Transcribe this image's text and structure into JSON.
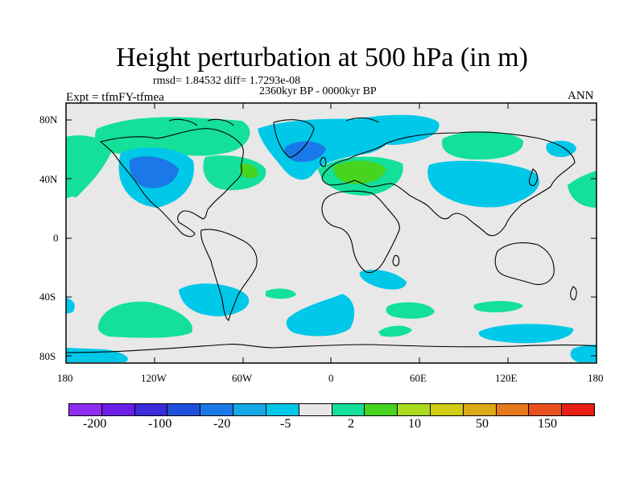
{
  "header": {
    "title": "Height perturbation at 500 hPa (in m)",
    "stats": "rmsd= 1.84532 diff= 1.7293e-08",
    "period": "2360kyr BP - 0000kyr BP",
    "experiment": "Expt = tfmFY-tfmea",
    "season": "ANN"
  },
  "axes": {
    "y_ticks": [
      "80N",
      "40N",
      "0",
      "40S",
      "80S"
    ],
    "x_ticks": [
      "180",
      "120W",
      "60W",
      "0",
      "60E",
      "120E",
      "180"
    ]
  },
  "colorbar": {
    "colors": [
      "#8f2ef0",
      "#6a1ee6",
      "#3c2adb",
      "#1e50dc",
      "#1a78e8",
      "#14a8e6",
      "#00c8e8",
      "#e8e8e8",
      "#14e09a",
      "#46d41e",
      "#aadc1e",
      "#d2cc14",
      "#dcaa14",
      "#e6781e",
      "#e8501e",
      "#e61e14"
    ],
    "labels": [
      "-200",
      "-100",
      "-20",
      "-5",
      "2",
      "10",
      "50",
      "150"
    ]
  },
  "map": {
    "land_color": "#e8e8e8",
    "regions": [
      {
        "name": "green-arctic-north-america",
        "color": "#14e09a"
      },
      {
        "name": "green-alaska-pacific",
        "color": "#14e09a"
      },
      {
        "name": "green-atlantic-northwest",
        "color": "#14e09a"
      },
      {
        "name": "green-mid-atlantic",
        "color": "#46d41e"
      },
      {
        "name": "cyan-north-pacific-low",
        "color": "#00c8e8"
      },
      {
        "name": "blue-north-pacific-core",
        "color": "#1a78e8"
      },
      {
        "name": "cyan-north-atlantic",
        "color": "#00c8e8"
      },
      {
        "name": "blue-north-atlantic-core",
        "color": "#1a78e8"
      },
      {
        "name": "green-europe",
        "color": "#14e09a"
      },
      {
        "name": "darkgreen-europe-core",
        "color": "#46d41e"
      },
      {
        "name": "cyan-siberia",
        "color": "#00c8e8"
      },
      {
        "name": "green-central-asia",
        "color": "#14e09a"
      },
      {
        "name": "cyan-east-asia",
        "color": "#00c8e8"
      },
      {
        "name": "cyan-northwest-pacific",
        "color": "#00c8e8"
      },
      {
        "name": "green-east-pacific",
        "color": "#14e09a"
      },
      {
        "name": "cyan-south-america-west",
        "color": "#00c8e8"
      },
      {
        "name": "green-south-atlantic-small",
        "color": "#14e09a"
      },
      {
        "name": "green-south-pacific",
        "color": "#14e09a"
      },
      {
        "name": "cyan-south-atlantic",
        "color": "#00c8e8"
      },
      {
        "name": "cyan-south-africa",
        "color": "#00c8e8"
      },
      {
        "name": "green-south-indian",
        "color": "#14e09a"
      },
      {
        "name": "green-south-indian-2",
        "color": "#14e09a"
      },
      {
        "name": "green-south-indian-east",
        "color": "#14e09a"
      },
      {
        "name": "cyan-southern-ocean-east",
        "color": "#00c8e8"
      },
      {
        "name": "cyan-antarctic-west",
        "color": "#00c8e8"
      },
      {
        "name": "cyan-antarctic-east",
        "color": "#00c8e8"
      },
      {
        "name": "green-west-edge",
        "color": "#14e09a"
      },
      {
        "name": "cyan-west-edge-south",
        "color": "#00c8e8"
      }
    ]
  }
}
